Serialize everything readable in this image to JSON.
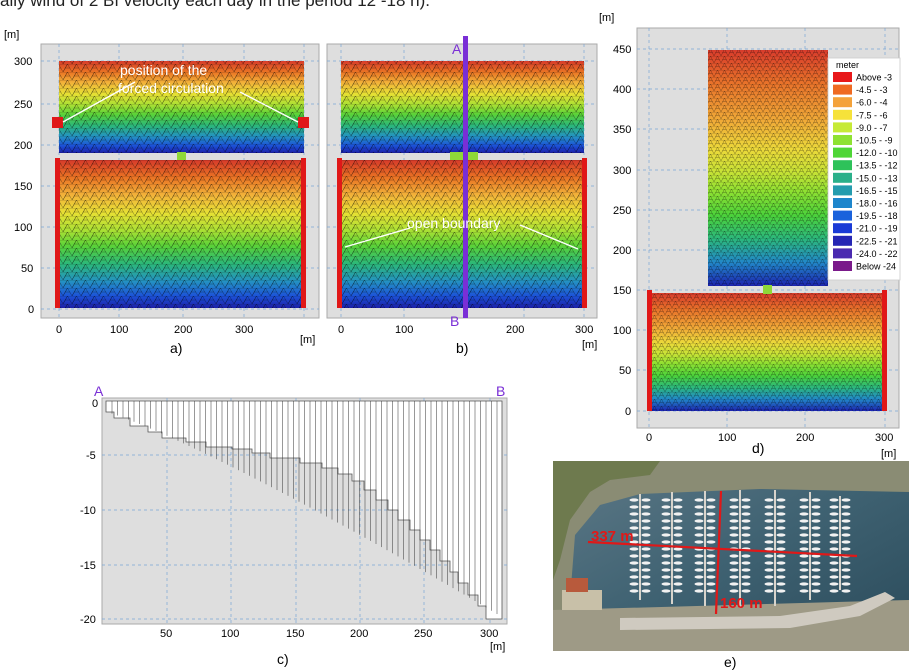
{
  "caption_fragment": "aily wind of 2 Bf velocity each day in the period 12 -18 h).",
  "panel_a": {
    "label": "a)",
    "unit_y": "[m]",
    "unit_x": "[m]",
    "y_ticks": [
      "300",
      "250",
      "200",
      "150",
      "100",
      "50",
      "0"
    ],
    "x_ticks": [
      "0",
      "100",
      "200",
      "300"
    ],
    "annotation_line1": "position of the",
    "annotation_line2": "forced circulation"
  },
  "panel_b": {
    "label": "b)",
    "unit_x": "[m]",
    "x_ticks": [
      "0",
      "100",
      "200",
      "300"
    ],
    "section_start": "A",
    "section_end": "B",
    "annotation": "open boundary"
  },
  "panel_c": {
    "label": "c)",
    "unit_x": "[m]",
    "y_ticks": [
      "0",
      "-5",
      "-10",
      "-15",
      "-20"
    ],
    "x_ticks": [
      "50",
      "100",
      "150",
      "200",
      "250",
      "300"
    ],
    "section_start": "A",
    "section_end": "B"
  },
  "panel_d": {
    "label": "d)",
    "unit_y": "[m]",
    "unit_x": "[m]",
    "y_ticks": [
      "450",
      "400",
      "350",
      "300",
      "250",
      "200",
      "150",
      "100",
      "50",
      "0"
    ],
    "x_ticks": [
      "0",
      "100",
      "200",
      "300"
    ],
    "legend_title": "meter",
    "legend": [
      {
        "label": "Above  -3",
        "color": "#e8181a"
      },
      {
        "label": "-4.5 -  -3",
        "color": "#ef6a22"
      },
      {
        "label": "-6.0 -  -4",
        "color": "#f4a23a"
      },
      {
        "label": "-7.5 -  -6",
        "color": "#f6e23a"
      },
      {
        "label": "-9.0 -  -7",
        "color": "#c6ea36"
      },
      {
        "label": "-10.5 -  -9",
        "color": "#8ee232"
      },
      {
        "label": "-12.0 - -10",
        "color": "#4ed636"
      },
      {
        "label": "-13.5 - -12",
        "color": "#2ec25a"
      },
      {
        "label": "-15.0 - -13",
        "color": "#2ab08a"
      },
      {
        "label": "-16.5 - -15",
        "color": "#249cae"
      },
      {
        "label": "-18.0 - -16",
        "color": "#1e86cc"
      },
      {
        "label": "-19.5 - -18",
        "color": "#1a62dc"
      },
      {
        "label": "-21.0 - -19",
        "color": "#1a3ad6"
      },
      {
        "label": "-22.5 - -21",
        "color": "#2626b4"
      },
      {
        "label": "-24.0 - -22",
        "color": "#4a2ab0"
      },
      {
        "label": "Below -24",
        "color": "#7a1a8a"
      }
    ]
  },
  "panel_e": {
    "label": "e)",
    "width_label": "337 m",
    "height_label": "160 m"
  },
  "colors": {
    "shallow": "#d9352a",
    "deep": "#1c24b8",
    "boundary": "#e01818",
    "section": "#7a2fd6",
    "plot_bg": "#dedede"
  }
}
